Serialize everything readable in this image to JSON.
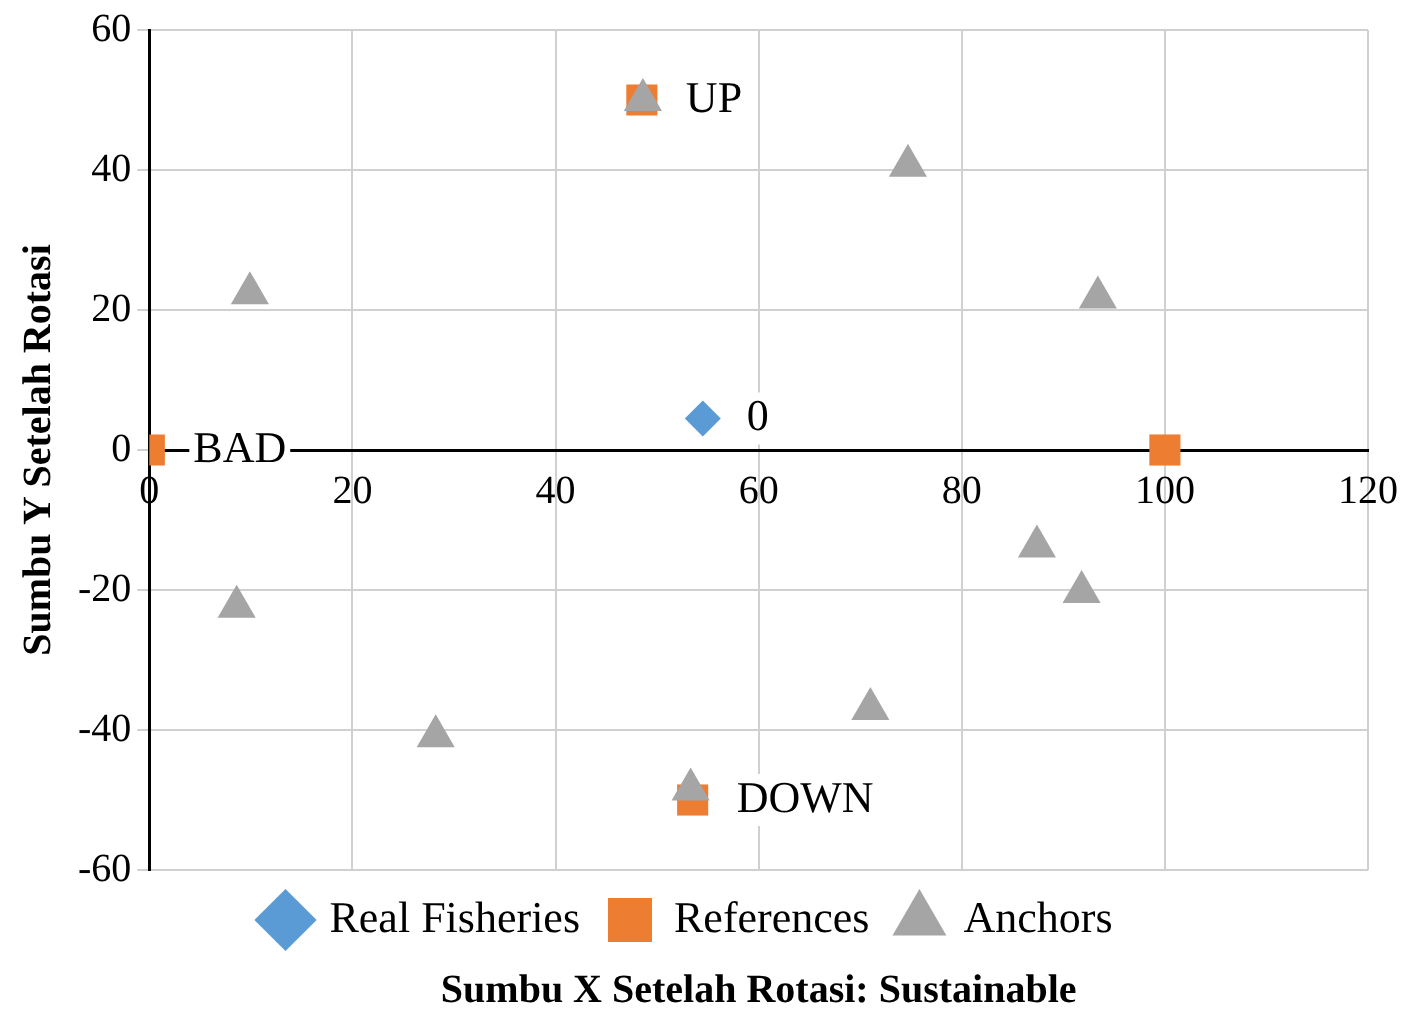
{
  "chart_data": {
    "type": "scatter",
    "xlabel": "Sumbu X Setelah Rotasi: Sustainable",
    "ylabel": "Sumbu Y Setelah Rotasi",
    "xlim": [
      0,
      120
    ],
    "xticks": [
      0,
      20,
      40,
      60,
      80,
      100,
      120
    ],
    "ylim": [
      -60,
      60
    ],
    "yticks": [
      -60,
      -40,
      -20,
      0,
      20,
      40,
      60
    ],
    "grid": true,
    "legend": "bottom",
    "series": [
      {
        "name": "Real Fisheries",
        "color": "#5b9bd5",
        "marker": "diamond",
        "x": [
          54.5
        ],
        "values": [
          4.5
        ]
      },
      {
        "name": "References",
        "color": "#ed7d31",
        "marker": "square",
        "x": [
          0,
          100,
          48.5,
          53.5
        ],
        "values": [
          0,
          0,
          50,
          -50
        ]
      },
      {
        "name": "Anchors",
        "color": "#a5a5a5",
        "marker": "triangle",
        "x": [
          48.6,
          74.7,
          9.9,
          93.4,
          8.6,
          87.4,
          91.8,
          28.2,
          71,
          53.3
        ],
        "values": [
          50,
          40.6,
          22.4,
          21.8,
          -22.4,
          -13.8,
          -20.3,
          -40.9,
          -37,
          -48.5
        ]
      }
    ],
    "annotations": [
      {
        "text": "UP",
        "x": 48.5,
        "y": 50
      },
      {
        "text": "DOWN",
        "x": 53.5,
        "y": -50
      },
      {
        "text": "BAD",
        "x": 0,
        "y": 0
      },
      {
        "text": "0",
        "x": 54.5,
        "y": 4.5
      }
    ]
  }
}
